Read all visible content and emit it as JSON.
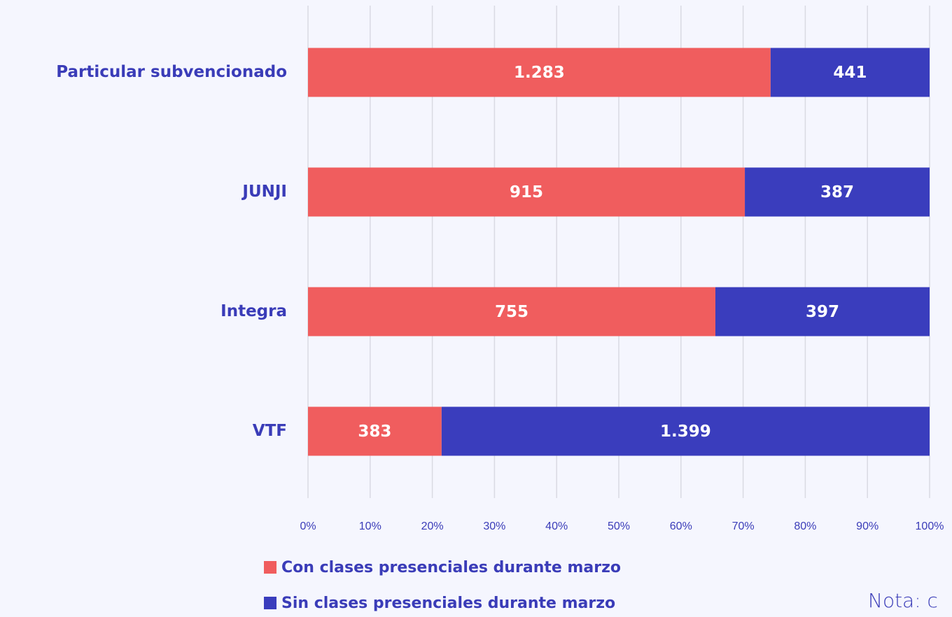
{
  "chart_data": {
    "type": "bar",
    "orientation": "horizontal",
    "stacked": "percent",
    "categories": [
      "Particular subvencionado",
      "JUNJI",
      "Integra",
      "VTF"
    ],
    "series": [
      {
        "name": "Con clases presenciales durante marzo",
        "color": "#f05d5e",
        "values": [
          1283,
          915,
          755,
          383
        ],
        "value_labels": [
          "1.283",
          "915",
          "755",
          "383"
        ]
      },
      {
        "name": "Sin clases presenciales durante marzo",
        "color": "#3a3dbd",
        "values": [
          441,
          387,
          397,
          1399
        ],
        "value_labels": [
          "441",
          "387",
          "397",
          "1.399"
        ]
      }
    ],
    "xlim": [
      0,
      100
    ],
    "xticks": [
      {
        "value": 0,
        "label": "0%"
      },
      {
        "value": 10,
        "label": "10%"
      },
      {
        "value": 20,
        "label": "20%"
      },
      {
        "value": 30,
        "label": "30%"
      },
      {
        "value": 40,
        "label": "40%"
      },
      {
        "value": 50,
        "label": "50%"
      },
      {
        "value": 60,
        "label": "60%"
      },
      {
        "value": 70,
        "label": "70%"
      },
      {
        "value": 80,
        "label": "80%"
      },
      {
        "value": 90,
        "label": "90%"
      },
      {
        "value": 100,
        "label": "100%"
      }
    ],
    "grid": true,
    "legend": "bottom",
    "note": "Nota: c"
  }
}
